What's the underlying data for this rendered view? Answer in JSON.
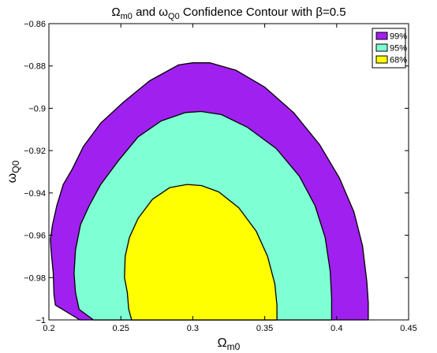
{
  "chart_data": {
    "type": "area",
    "title": "Ω_m0 and ω_Q0 Confidence Contour with β=0.5",
    "title_parts": {
      "t1": "Ω",
      "s1": "m0",
      "t2": " and ",
      "t3": "ω",
      "s2": "Q0",
      "t4": " Confidence Contour with ",
      "t5": "β=0.5"
    },
    "xlabel": "Ω_m0",
    "xlabel_parts": {
      "main": "Ω",
      "sub": "m0"
    },
    "ylabel": "ω_Q0",
    "ylabel_parts": {
      "main": "ω",
      "sub": "Q0"
    },
    "xlim": [
      0.2,
      0.45
    ],
    "ylim": [
      -1.0,
      -0.86
    ],
    "xticks": [
      0.2,
      0.25,
      0.3,
      0.35,
      0.4,
      0.45
    ],
    "xtick_labels": [
      "0.2",
      "0.25",
      "0.3",
      "0.35",
      "0.4",
      "0.45"
    ],
    "yticks": [
      -1.0,
      -0.98,
      -0.96,
      -0.94,
      -0.92,
      -0.9,
      -0.88,
      -0.86
    ],
    "ytick_labels": [
      "−1",
      "−0.98",
      "−0.96",
      "−0.94",
      "−0.92",
      "−0.9",
      "−0.88",
      "−0.86"
    ],
    "grid": false,
    "legend_position": "top-right",
    "series": [
      {
        "name": "99%",
        "color": "#a020f0",
        "x": [
          0.203,
          0.2015,
          0.201,
          0.2025,
          0.2055,
          0.21,
          0.216,
          0.224,
          0.236,
          0.252,
          0.27,
          0.29,
          0.3,
          0.312,
          0.33,
          0.35,
          0.37,
          0.388,
          0.402,
          0.412,
          0.418,
          0.421,
          0.422,
          0.422,
          0.2215,
          0.2045,
          0.2035
        ],
        "y": [
          -0.978,
          -0.967,
          -0.962,
          -0.955,
          -0.946,
          -0.936,
          -0.929,
          -0.918,
          -0.907,
          -0.897,
          -0.887,
          -0.8795,
          -0.8785,
          -0.8785,
          -0.882,
          -0.89,
          -0.902,
          -0.917,
          -0.933,
          -0.949,
          -0.965,
          -0.982,
          -0.992,
          -1.0,
          -1.0,
          -0.993,
          -0.988
        ]
      },
      {
        "name": "95%",
        "color": "#7fffd4",
        "x": [
          0.2185,
          0.2175,
          0.2185,
          0.222,
          0.228,
          0.236,
          0.248,
          0.262,
          0.278,
          0.295,
          0.306,
          0.32,
          0.338,
          0.358,
          0.374,
          0.385,
          0.392,
          0.3955,
          0.3965,
          0.3965,
          0.231,
          0.221
        ],
        "y": [
          -0.987,
          -0.978,
          -0.967,
          -0.955,
          -0.946,
          -0.936,
          -0.925,
          -0.9135,
          -0.906,
          -0.902,
          -0.9015,
          -0.903,
          -0.909,
          -0.919,
          -0.932,
          -0.946,
          -0.961,
          -0.977,
          -0.99,
          -1.0,
          -1.0,
          -0.995
        ]
      },
      {
        "name": "68%",
        "color": "#ffff00",
        "x": [
          0.2545,
          0.2525,
          0.253,
          0.256,
          0.262,
          0.272,
          0.284,
          0.296,
          0.306,
          0.318,
          0.332,
          0.344,
          0.352,
          0.357,
          0.3585,
          0.3585,
          0.2575,
          0.2555
        ],
        "y": [
          -0.987,
          -0.98,
          -0.97,
          -0.961,
          -0.952,
          -0.943,
          -0.9375,
          -0.936,
          -0.9365,
          -0.9395,
          -0.947,
          -0.958,
          -0.97,
          -0.983,
          -0.993,
          -1.0,
          -1.0,
          -0.995
        ]
      }
    ]
  }
}
